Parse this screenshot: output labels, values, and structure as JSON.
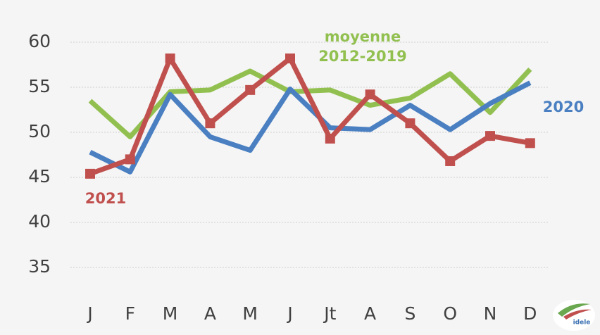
{
  "chart_data": {
    "type": "line",
    "categories": [
      "J",
      "F",
      "M",
      "A",
      "M",
      "J",
      "Jt",
      "A",
      "S",
      "O",
      "N",
      "D"
    ],
    "series": [
      {
        "name": "moyenne 2012-2019",
        "color": "#92c050",
        "values": [
          53.5,
          49.5,
          54.5,
          54.7,
          56.8,
          54.5,
          54.7,
          53,
          53.8,
          56.5,
          52.2,
          57
        ],
        "marker": false
      },
      {
        "name": "2020",
        "color": "#4a7fc1",
        "values": [
          47.8,
          45.6,
          54.2,
          49.5,
          48,
          54.8,
          50.5,
          50.3,
          53,
          50.3,
          53.2,
          55.5
        ],
        "marker": false
      },
      {
        "name": "2021",
        "color": "#c0504d",
        "values": [
          45.4,
          47,
          58.2,
          51,
          54.7,
          58.2,
          49.3,
          54.2,
          51,
          46.8,
          49.6,
          48.8
        ],
        "marker": true
      }
    ],
    "ylim": [
      35,
      60
    ],
    "yticks": [
      35,
      40,
      45,
      50,
      55,
      60
    ],
    "grid": true,
    "logo_text": "idele"
  }
}
